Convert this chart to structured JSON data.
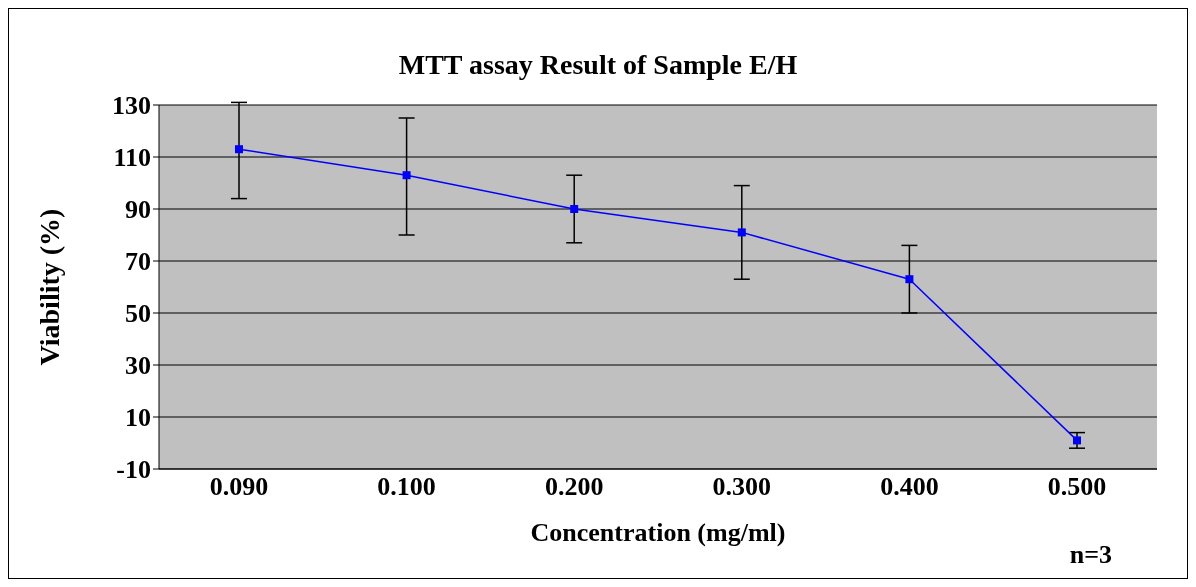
{
  "chart_data": {
    "type": "line",
    "title": "MTT assay Result of Sample E/H",
    "xlabel": "Concentration (mg/ml)",
    "ylabel": "Viability (%)",
    "categories": [
      "0.090",
      "0.100",
      "0.200",
      "0.300",
      "0.400",
      "0.500"
    ],
    "series": [
      {
        "color": "#0000ff",
        "values": [
          113,
          103,
          90,
          81,
          63,
          1
        ],
        "errors": [
          [
            94,
            131
          ],
          [
            80,
            125
          ],
          [
            77,
            103
          ],
          [
            63,
            99
          ],
          [
            50,
            76
          ],
          [
            -2,
            4
          ]
        ]
      }
    ],
    "ylim": [
      -10,
      130
    ],
    "yticks": [
      -10,
      10,
      30,
      50,
      70,
      90,
      110,
      130
    ],
    "grid": "y",
    "marker": "square",
    "line_style": "solid",
    "annotations": [
      "n=3"
    ]
  }
}
